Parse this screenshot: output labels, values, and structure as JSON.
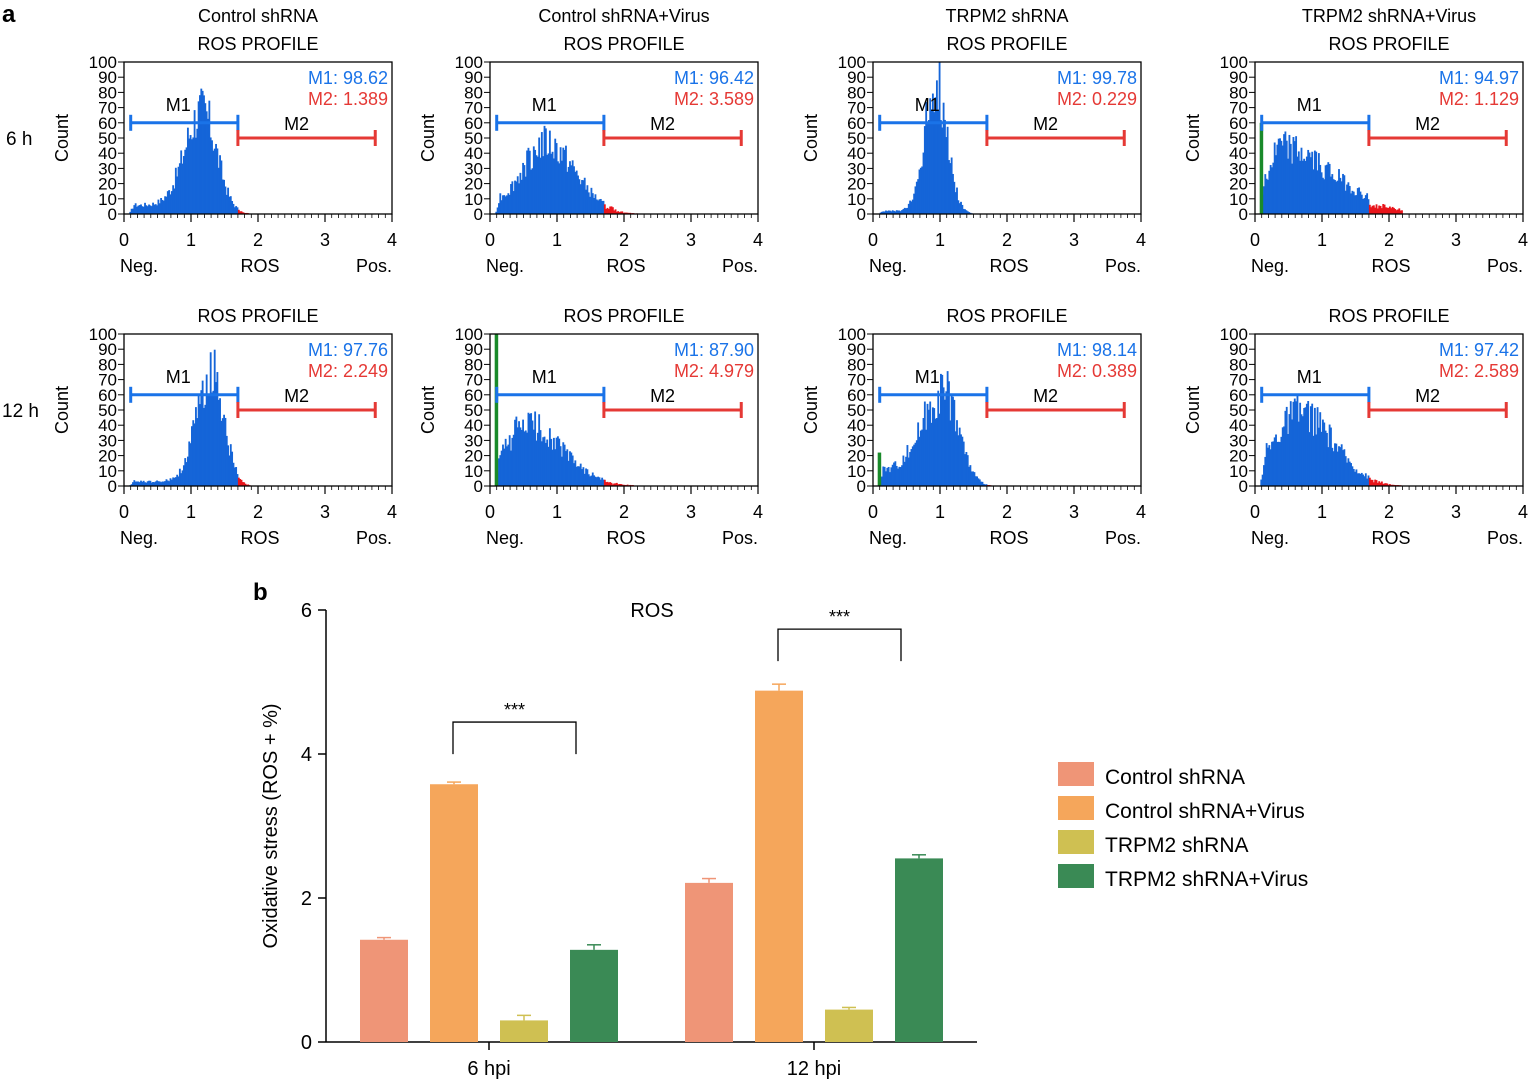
{
  "panel_a": {
    "label": "a",
    "row_labels": [
      "6 h",
      "12 h"
    ],
    "profile_title": "ROS PROFILE",
    "y_label": "Count",
    "x_label_center": "ROS",
    "x_label_left": "Neg.",
    "x_label_right": "Pos.",
    "gate_labels": [
      "M1",
      "M2"
    ]
  },
  "panel_b": {
    "label": "b"
  },
  "colors": {
    "hist_fill": "#1565d8",
    "hist_m2_fill": "#e8141a",
    "hist_debris": "#1a8a2a",
    "m1_gate": "#1a73e8",
    "m2_gate": "#e53935",
    "bar_control": "#ef9577",
    "bar_control_virus": "#f5a65b",
    "bar_trpm2": "#cfc052",
    "bar_trpm2_virus": "#3a8a55"
  },
  "chart_data": [
    {
      "type": "histogram",
      "row": "6 h",
      "title": "Control shRNA",
      "subtitle": "ROS PROFILE",
      "xlabel": "ROS",
      "ylabel": "Count",
      "xlim": [
        0,
        4
      ],
      "ylim": [
        0,
        100
      ],
      "xticks": [
        "0",
        "1",
        "2",
        "3",
        "4"
      ],
      "yticks": [
        "0",
        "10",
        "20",
        "30",
        "40",
        "50",
        "60",
        "70",
        "80",
        "90",
        "100"
      ],
      "gates": {
        "M1": [
          0.1,
          1.7
        ],
        "M2": [
          1.7,
          3.75
        ]
      },
      "stats": {
        "M1": "M1: 98.62",
        "M2": "M2: 1.389"
      },
      "shape": {
        "peak_x": 1.15,
        "peak_y": 70,
        "sigma_left": 0.25,
        "sigma_right": 0.22,
        "base": 6,
        "debris": 0
      }
    },
    {
      "type": "histogram",
      "row": "6 h",
      "title": "Control shRNA+Virus",
      "subtitle": "ROS PROFILE",
      "xlabel": "ROS",
      "ylabel": "Count",
      "xlim": [
        0,
        4
      ],
      "ylim": [
        0,
        100
      ],
      "xticks": [
        "0",
        "1",
        "2",
        "3",
        "4"
      ],
      "yticks": [
        "0",
        "10",
        "20",
        "30",
        "40",
        "50",
        "60",
        "70",
        "80",
        "90",
        "100"
      ],
      "gates": {
        "M1": [
          0.1,
          1.7
        ],
        "M2": [
          1.7,
          3.75
        ]
      },
      "stats": {
        "M1": "M1: 96.42",
        "M2": "M2: 3.589"
      },
      "shape": {
        "peak_x": 0.8,
        "peak_y": 48,
        "sigma_left": 0.3,
        "sigma_right": 0.45,
        "base": 8,
        "debris": 0
      }
    },
    {
      "type": "histogram",
      "row": "6 h",
      "title": "TRPM2 shRNA",
      "subtitle": "ROS PROFILE",
      "xlabel": "ROS",
      "ylabel": "Count",
      "xlim": [
        0,
        4
      ],
      "ylim": [
        0,
        100
      ],
      "xticks": [
        "0",
        "1",
        "2",
        "3",
        "4"
      ],
      "yticks": [
        "0",
        "10",
        "20",
        "30",
        "40",
        "50",
        "60",
        "70",
        "80",
        "90",
        "100"
      ],
      "gates": {
        "M1": [
          0.1,
          1.7
        ],
        "M2": [
          1.7,
          3.75
        ]
      },
      "stats": {
        "M1": "M1: 99.78",
        "M2": "M2: 0.229"
      },
      "shape": {
        "peak_x": 0.92,
        "peak_y": 90,
        "sigma_left": 0.16,
        "sigma_right": 0.17,
        "base": 2,
        "debris": 0
      }
    },
    {
      "type": "histogram",
      "row": "6 h",
      "title": "TRPM2 shRNA+Virus",
      "subtitle": "ROS PROFILE",
      "xlabel": "ROS",
      "ylabel": "Count",
      "xlim": [
        0,
        4
      ],
      "ylim": [
        0,
        100
      ],
      "xticks": [
        "0",
        "1",
        "2",
        "3",
        "4"
      ],
      "yticks": [
        "0",
        "10",
        "20",
        "30",
        "40",
        "50",
        "60",
        "70",
        "80",
        "90",
        "100"
      ],
      "gates": {
        "M1": [
          0.1,
          1.7
        ],
        "M2": [
          1.7,
          3.75
        ]
      },
      "stats": {
        "M1": "M1: 94.97",
        "M2": "M2: 1.129"
      },
      "shape": {
        "peak_x": 0.35,
        "peak_y": 45,
        "sigma_left": 0.1,
        "sigma_right": 0.8,
        "base": 22,
        "debris": 60
      }
    },
    {
      "type": "histogram",
      "row": "12 h",
      "title": "",
      "subtitle": "ROS PROFILE",
      "xlabel": "ROS",
      "ylabel": "Count",
      "xlim": [
        0,
        4
      ],
      "ylim": [
        0,
        100
      ],
      "xticks": [
        "0",
        "1",
        "2",
        "3",
        "4"
      ],
      "yticks": [
        "0",
        "10",
        "20",
        "30",
        "40",
        "50",
        "60",
        "70",
        "80",
        "90",
        "100"
      ],
      "gates": {
        "M1": [
          0.1,
          1.7
        ],
        "M2": [
          1.7,
          3.75
        ]
      },
      "stats": {
        "M1": "M1: 97.76",
        "M2": "M2: 2.249"
      },
      "shape": {
        "peak_x": 1.3,
        "peak_y": 78,
        "sigma_left": 0.22,
        "sigma_right": 0.18,
        "base": 3,
        "debris": 0
      }
    },
    {
      "type": "histogram",
      "row": "12 h",
      "title": "",
      "subtitle": "ROS PROFILE",
      "xlabel": "ROS",
      "ylabel": "Count",
      "xlim": [
        0,
        4
      ],
      "ylim": [
        0,
        100
      ],
      "xticks": [
        "0",
        "1",
        "2",
        "3",
        "4"
      ],
      "yticks": [
        "0",
        "10",
        "20",
        "30",
        "40",
        "50",
        "60",
        "70",
        "80",
        "90",
        "100"
      ],
      "gates": {
        "M1": [
          0.1,
          1.7
        ],
        "M2": [
          1.7,
          3.75
        ]
      },
      "stats": {
        "M1": "M1: 87.90",
        "M2": "M2: 4.979"
      },
      "shape": {
        "peak_x": 0.5,
        "peak_y": 42,
        "sigma_left": 0.2,
        "sigma_right": 0.55,
        "base": 16,
        "debris": 100
      }
    },
    {
      "type": "histogram",
      "row": "12 h",
      "title": "",
      "subtitle": "ROS PROFILE",
      "xlabel": "ROS",
      "ylabel": "Count",
      "xlim": [
        0,
        4
      ],
      "ylim": [
        0,
        100
      ],
      "xticks": [
        "0",
        "1",
        "2",
        "3",
        "4"
      ],
      "yticks": [
        "0",
        "10",
        "20",
        "30",
        "40",
        "50",
        "60",
        "70",
        "80",
        "90",
        "100"
      ],
      "gates": {
        "M1": [
          0.1,
          1.7
        ],
        "M2": [
          1.7,
          3.75
        ]
      },
      "stats": {
        "M1": "M1: 98.14",
        "M2": "M2: 0.389"
      },
      "shape": {
        "peak_x": 1.05,
        "peak_y": 65,
        "sigma_left": 0.32,
        "sigma_right": 0.22,
        "base": 10,
        "debris": 22
      }
    },
    {
      "type": "histogram",
      "row": "12 h",
      "title": "",
      "subtitle": "ROS PROFILE",
      "xlabel": "ROS",
      "ylabel": "Count",
      "xlim": [
        0,
        4
      ],
      "ylim": [
        0,
        100
      ],
      "xticks": [
        "0",
        "1",
        "2",
        "3",
        "4"
      ],
      "yticks": [
        "0",
        "10",
        "20",
        "30",
        "40",
        "50",
        "60",
        "70",
        "80",
        "90",
        "100"
      ],
      "gates": {
        "M1": [
          0.1,
          1.7
        ],
        "M2": [
          1.7,
          3.75
        ]
      },
      "stats": {
        "M1": "M1: 97.42",
        "M2": "M2: 2.589"
      },
      "shape": {
        "peak_x": 0.65,
        "peak_y": 50,
        "sigma_left": 0.3,
        "sigma_right": 0.5,
        "base": 14,
        "debris": 0
      }
    },
    {
      "type": "bar",
      "title": "ROS",
      "xlabel": "",
      "ylabel": "Oxidative stress (ROS + %)",
      "ylim": [
        0,
        6
      ],
      "yticks": [
        "0",
        "2",
        "4",
        "6"
      ],
      "categories": [
        "6 hpi",
        "12 hpi"
      ],
      "series": [
        {
          "name": "Control shRNA",
          "values": [
            1.42,
            2.21
          ],
          "errors": [
            0.03,
            0.06
          ]
        },
        {
          "name": "Control shRNA+Virus",
          "values": [
            3.58,
            4.88
          ],
          "errors": [
            0.03,
            0.09
          ]
        },
        {
          "name": "TRPM2 shRNA",
          "values": [
            0.3,
            0.45
          ],
          "errors": [
            0.07,
            0.03
          ]
        },
        {
          "name": "TRPM2 shRNA+Virus",
          "values": [
            1.28,
            2.55
          ],
          "errors": [
            0.07,
            0.05
          ]
        }
      ],
      "significance": [
        {
          "category": "6 hpi",
          "from": "Control shRNA+Virus",
          "to": "TRPM2 shRNA+Virus",
          "label": "***"
        },
        {
          "category": "12 hpi",
          "from": "Control shRNA+Virus",
          "to": "TRPM2 shRNA+Virus",
          "label": "***"
        }
      ],
      "legend_position": "right"
    }
  ]
}
